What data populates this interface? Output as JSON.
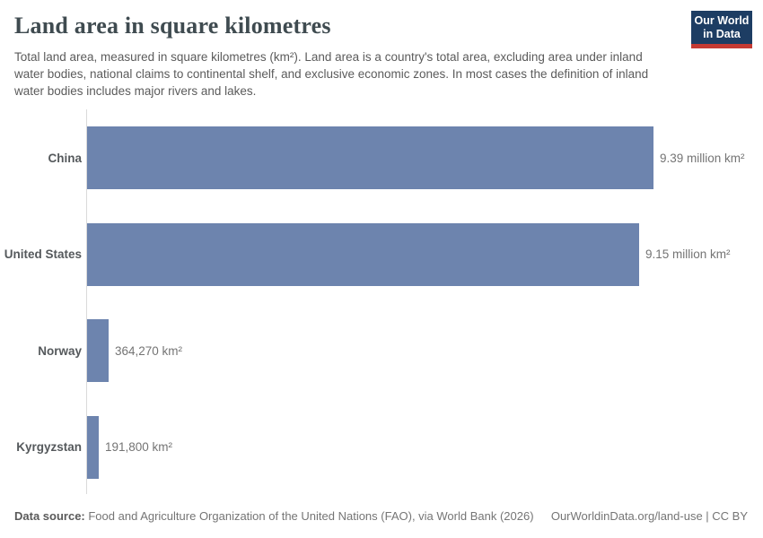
{
  "header": {
    "title": "Land area in square kilometres",
    "subtitle": "Total land area, measured in square kilometres (km²). Land area is a country's total area, excluding area under inland water bodies, national claims to continental shelf, and exclusive economic zones. In most cases the definition of inland water bodies includes major rivers and lakes.",
    "logo": {
      "line1": "Our World",
      "line2": "in Data",
      "bg_color": "#1d3d63",
      "accent_color": "#c53a32"
    }
  },
  "chart_data": {
    "type": "bar",
    "orientation": "horizontal",
    "title": "Land area in square kilometres",
    "categories": [
      "China",
      "United States",
      "Norway",
      "Kyrgyzstan"
    ],
    "values": [
      9390000,
      9150000,
      364270,
      191800
    ],
    "value_labels": [
      "9.39 million km²",
      "9.15 million km²",
      "364,270 km²",
      "191,800 km²"
    ],
    "unit": "km²",
    "xlim": [
      0,
      9390000
    ],
    "grid": false,
    "legend": "none",
    "bar_color": "#6d84ae",
    "axis_line_color": "#dadada"
  },
  "footer": {
    "source_label": "Data source:",
    "source_text": " Food and Agriculture Organization of the United Nations (FAO), via World Bank (2026)",
    "link_text": "OurWorldinData.org/land-use | CC BY"
  }
}
